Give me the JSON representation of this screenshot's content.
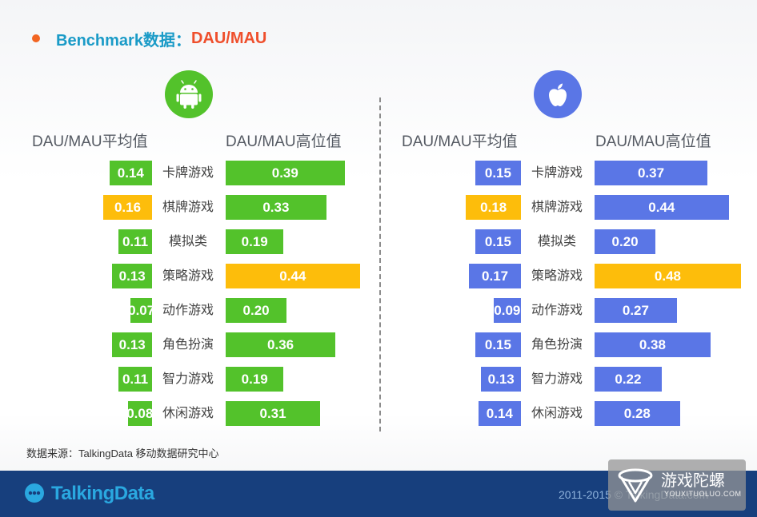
{
  "title": {
    "main": "Benchmark数据：",
    "accent": "DAU/MAU"
  },
  "colors": {
    "android_green": "#53c22b",
    "ios_blue": "#5a76e6",
    "highlight": "#fdbd0b",
    "dot": "#f26522"
  },
  "headers": {
    "left_avg": "DAU/MAU平均值",
    "left_high": "DAU/MAU高位值",
    "right_avg": "DAU/MAU平均值",
    "right_high": "DAU/MAU高位值"
  },
  "icons": {
    "android": "android-icon",
    "ios": "apple-icon"
  },
  "chart_data": [
    {
      "type": "bar",
      "platform_icon": "android",
      "categories": [
        "卡牌游戏",
        "棋牌游戏",
        "模拟类",
        "策略游戏",
        "动作游戏",
        "角色扮演",
        "智力游戏",
        "休闲游戏"
      ],
      "series": [
        {
          "name": "DAU/MAU平均值",
          "values": [
            0.14,
            0.16,
            0.11,
            0.13,
            0.07,
            0.13,
            0.11,
            0.08
          ],
          "labels": [
            "0.14",
            "0.16",
            "0.11",
            "0.13",
            "0.07",
            "0.13",
            "0.11",
            "0.08"
          ],
          "highlight_index": 1
        },
        {
          "name": "DAU/MAU高位值",
          "values": [
            0.39,
            0.33,
            0.19,
            0.44,
            0.2,
            0.36,
            0.19,
            0.31
          ],
          "labels": [
            "0.39",
            "0.33",
            "0.19",
            "0.44",
            "0.20",
            "0.36",
            "0.19",
            "0.31"
          ],
          "highlight_index": 3
        }
      ]
    },
    {
      "type": "bar",
      "platform_icon": "ios",
      "categories": [
        "卡牌游戏",
        "棋牌游戏",
        "模拟类",
        "策略游戏",
        "动作游戏",
        "角色扮演",
        "智力游戏",
        "休闲游戏"
      ],
      "series": [
        {
          "name": "DAU/MAU平均值",
          "values": [
            0.15,
            0.18,
            0.15,
            0.17,
            0.09,
            0.15,
            0.13,
            0.14
          ],
          "labels": [
            "0.15",
            "0.18",
            "0.15",
            "0.17",
            "0.09",
            "0.15",
            "0.13",
            "0.14"
          ],
          "highlight_index": 1
        },
        {
          "name": "DAU/MAU高位值",
          "values": [
            0.37,
            0.44,
            0.2,
            0.48,
            0.27,
            0.38,
            0.22,
            0.28
          ],
          "labels": [
            "0.37",
            "0.44",
            "0.20",
            "0.48",
            "0.27",
            "0.38",
            "0.22",
            "0.28"
          ],
          "highlight_index": 3
        }
      ]
    }
  ],
  "source": "数据来源：TalkingData 移动数据研究中心",
  "footer": {
    "logo_text": "TalkingData",
    "copyright": "2011-2015 © TalkingData.com"
  },
  "watermark": {
    "text": "游戏陀螺",
    "sub": "YOUXITUOLUO.COM"
  }
}
